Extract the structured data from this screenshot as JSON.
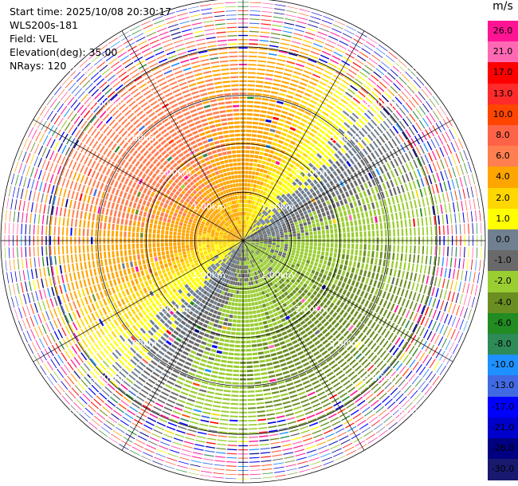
{
  "header": {
    "start_time": "Start time: 2025/10/08 20:30:17",
    "station": "WLS200s-181",
    "field": "Field: VEL",
    "elevation": "Elevation(deg): 35.00",
    "nrays": "NRays: 120"
  },
  "chart_data": {
    "type": "heatmap",
    "projection": "polar-ppi",
    "field": "VEL",
    "unit": "m/s",
    "elevation_deg": 35.0,
    "n_rays": 120,
    "max_range_km": 5.0,
    "range_rings_km": [
      1,
      2,
      3,
      4,
      5
    ],
    "range_ring_labels": [
      "1.00km",
      "2.00km",
      "3.00km",
      "4.00km",
      "5.00km"
    ],
    "azimuth_lines_deg": [
      0,
      30,
      60,
      90,
      120,
      150,
      180,
      210,
      240,
      270,
      300,
      330
    ],
    "colorbar": {
      "unit": "m/s",
      "tick_labels": [
        "26.0",
        "21.0",
        "17.0",
        "13.0",
        "10.0",
        "8.0",
        "6.0",
        "4.0",
        "2.0",
        "1.0",
        "0.0",
        "-1.0",
        "-2.0",
        "-4.0",
        "-6.0",
        "-8.0",
        "-10.0",
        "-13.0",
        "-17.0",
        "-21.0",
        "-26.0",
        "-30.0"
      ],
      "colors": [
        "#ff1493",
        "#ff69b4",
        "#ff0000",
        "#ff2a2a",
        "#ff4500",
        "#ff6347",
        "#ff7f50",
        "#ffa500",
        "#ffd700",
        "#ffff00",
        "#708090",
        "#696969",
        "#9acd32",
        "#6b8e23",
        "#228b22",
        "#2e8b57",
        "#1e90ff",
        "#4169e1",
        "#0000ff",
        "#0000cd",
        "#000080",
        "#191970"
      ]
    },
    "velocity_pattern": {
      "approaching_bearing_deg": 135,
      "amplitude_mps": 5.0,
      "noise_start_km": 3.6
    }
  }
}
